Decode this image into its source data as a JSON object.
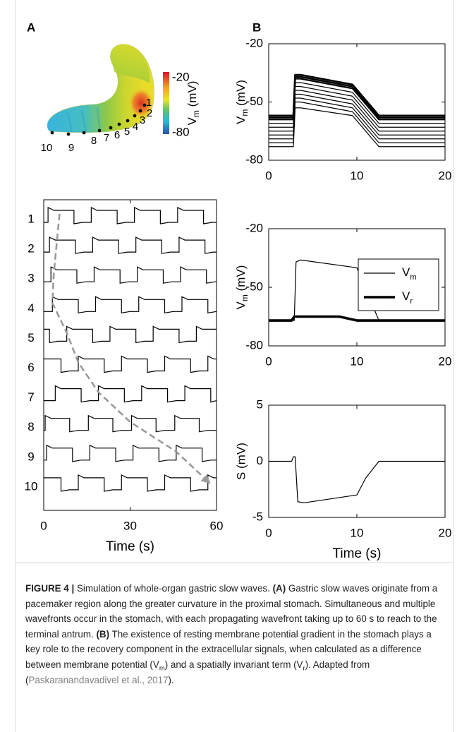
{
  "panel_labels": [
    "A",
    "B"
  ],
  "stomach": {
    "electrodes": [
      "1",
      "2",
      "3",
      "4",
      "5",
      "6",
      "7",
      "8",
      "9",
      "10"
    ],
    "colorbar": {
      "ticks": [
        -20,
        -80
      ],
      "label": {
        "main": "V",
        "sub": "m",
        "rest": " (mV)"
      }
    }
  },
  "chart_data": [
    {
      "type": "traces",
      "categories": [
        "1",
        "2",
        "3",
        "4",
        "5",
        "6",
        "7",
        "8",
        "9",
        "10"
      ],
      "color": "#000000",
      "series": [
        {
          "rises": [
            1.5,
            16.5,
            31.5,
            46.5
          ],
          "falls": [
            10.5,
            25.5,
            40.5,
            55.5
          ]
        },
        {
          "rises": [
            2,
            17,
            32,
            47
          ],
          "falls": [
            11,
            26,
            41,
            56
          ]
        },
        {
          "rises": [
            2.5,
            17.5,
            32.5,
            47.5
          ],
          "falls": [
            11.5,
            26.5,
            41.5,
            56.5
          ]
        },
        {
          "rises": [
            3,
            18,
            33,
            48
          ],
          "falls": [
            12,
            27,
            42,
            57
          ]
        },
        {
          "rises": [
            8,
            23,
            38,
            53
          ],
          "falls": [
            2,
            17,
            32,
            47
          ]
        },
        {
          "rises": [
            12,
            27,
            42,
            57
          ],
          "falls": [
            6,
            21,
            36,
            51
          ]
        },
        {
          "rises": [
            4,
            19,
            34,
            49
          ],
          "falls": [
            13,
            28,
            43,
            58
          ]
        },
        {
          "rises": [
            0.5,
            15.5,
            30.5,
            45.5
          ],
          "falls": [
            9,
            24,
            39,
            54
          ]
        },
        {
          "rises": [
            1,
            16,
            31,
            46
          ],
          "falls": [
            10,
            25,
            40,
            55
          ]
        },
        {
          "rises": [
            12,
            27,
            42,
            57
          ],
          "falls": [
            6,
            21,
            36,
            51
          ]
        }
      ],
      "wavefront": [
        5.5,
        4.5,
        3.5,
        3,
        8,
        12,
        19,
        30,
        46,
        57
      ],
      "wavefront_color": "#9a9a9a",
      "xlim": [
        0,
        60
      ],
      "xticks": [
        0,
        30,
        60
      ],
      "xlabel": "Time (s)"
    },
    {
      "type": "line",
      "x": [
        0,
        2.8,
        3.0,
        3.6,
        9.5,
        12.5,
        20
      ],
      "series": [
        {
          "color": "#000000",
          "width": 2.6,
          "values": [
            -57,
            -57,
            -36,
            -36,
            -41,
            -57,
            -57
          ]
        },
        {
          "color": "#000000",
          "width": 2.6,
          "values": [
            -58,
            -58,
            -37,
            -37,
            -42,
            -58,
            -58
          ]
        },
        {
          "color": "#000000",
          "width": 2.2,
          "values": [
            -59,
            -59,
            -38,
            -38,
            -43,
            -59,
            -59
          ]
        },
        {
          "color": "#000000",
          "width": 1.2,
          "values": [
            -61,
            -61,
            -40,
            -40,
            -45,
            -61,
            -61
          ]
        },
        {
          "color": "#000000",
          "width": 1.2,
          "values": [
            -63,
            -63,
            -42,
            -42,
            -47,
            -63,
            -63
          ]
        },
        {
          "color": "#000000",
          "width": 1.2,
          "values": [
            -65,
            -65,
            -44,
            -44,
            -49,
            -65,
            -65
          ]
        },
        {
          "color": "#000000",
          "width": 1.2,
          "values": [
            -67,
            -67,
            -46,
            -46,
            -51,
            -67,
            -67
          ]
        },
        {
          "color": "#000000",
          "width": 1.2,
          "values": [
            -69,
            -69,
            -48,
            -48,
            -53,
            -69,
            -69
          ]
        },
        {
          "color": "#000000",
          "width": 1.2,
          "values": [
            -71,
            -71,
            -50,
            -50,
            -55,
            -71,
            -71
          ]
        },
        {
          "color": "#000000",
          "width": 1.2,
          "values": [
            -73,
            -73,
            -53,
            -53,
            -57,
            -73,
            -73
          ]
        }
      ],
      "xlim": [
        0,
        20
      ],
      "xticks": [
        0,
        10,
        20
      ],
      "ylim": [
        -80,
        -20
      ],
      "yticks": [
        -80,
        -50,
        -20
      ],
      "ylabel": {
        "main": "V",
        "sub": "m",
        "rest": " (mV)"
      }
    },
    {
      "type": "line",
      "series": [
        {
          "name": "V",
          "subscript": "m",
          "color": "#000000",
          "width": 1.2,
          "x": [
            0,
            2.9,
            3.1,
            3.6,
            10,
            12.5,
            20
          ],
          "values": [
            -67,
            -67,
            -37,
            -36,
            -40,
            -67,
            -67
          ]
        },
        {
          "name": "V",
          "subscript": "r",
          "color": "#000000",
          "width": 3.6,
          "x": [
            0,
            2.6,
            2.9,
            8,
            10,
            20
          ],
          "values": [
            -67,
            -67,
            -65,
            -65,
            -67,
            -67
          ]
        }
      ],
      "legend": "upper right",
      "xlim": [
        0,
        20
      ],
      "xticks": [
        0,
        10,
        20
      ],
      "ylim": [
        -80,
        -20
      ],
      "yticks": [
        -80,
        -50,
        -20
      ],
      "ylabel": {
        "main": "V",
        "sub": "m",
        "rest": " (mV)"
      }
    },
    {
      "type": "line",
      "x": [
        0,
        2.6,
        2.8,
        3.0,
        3.3,
        4,
        10,
        11,
        12.5,
        20
      ],
      "series": [
        {
          "color": "#000000",
          "width": 1.2,
          "values": [
            0,
            0,
            0.4,
            0.4,
            -3.6,
            -3.7,
            -3.0,
            -1.5,
            0,
            0
          ]
        }
      ],
      "xlim": [
        0,
        20
      ],
      "xticks": [
        0,
        10,
        20
      ],
      "ylim": [
        -5,
        5
      ],
      "yticks": [
        -5,
        0,
        5
      ],
      "ylabel": "S (mV)",
      "xlabel": "Time (s)"
    }
  ],
  "caption": [
    {
      "text": "FIGURE 4 |",
      "style": "bold"
    },
    {
      "text": " Simulation of whole-organ gastric slow waves. ",
      "style": "plain"
    },
    {
      "text": "(A)",
      "style": "bold"
    },
    {
      "text": " Gastric slow waves originate from a pacemaker region along the greater curvature in the proximal stomach. Simultaneous and multiple wavefronts occur in the stomach, with each propagating wavefront taking up to 60 s to reach to the terminal antrum. ",
      "style": "plain"
    },
    {
      "text": "(B)",
      "style": "bold"
    },
    {
      "text": " The existence of resting membrane potential gradient in the stomach plays a key role to the recovery component in the extracellular signals, when calculated as a difference between membrane potential (V",
      "style": "plain"
    },
    {
      "text": "m",
      "style": "sub"
    },
    {
      "text": ") and a spatially invariant term (V",
      "style": "plain"
    },
    {
      "text": "r",
      "style": "sub"
    },
    {
      "text": "). Adapted from (",
      "style": "plain"
    },
    {
      "text": "Paskaranandavadivel et al., 2017",
      "style": "link"
    },
    {
      "text": ").",
      "style": "plain"
    }
  ]
}
